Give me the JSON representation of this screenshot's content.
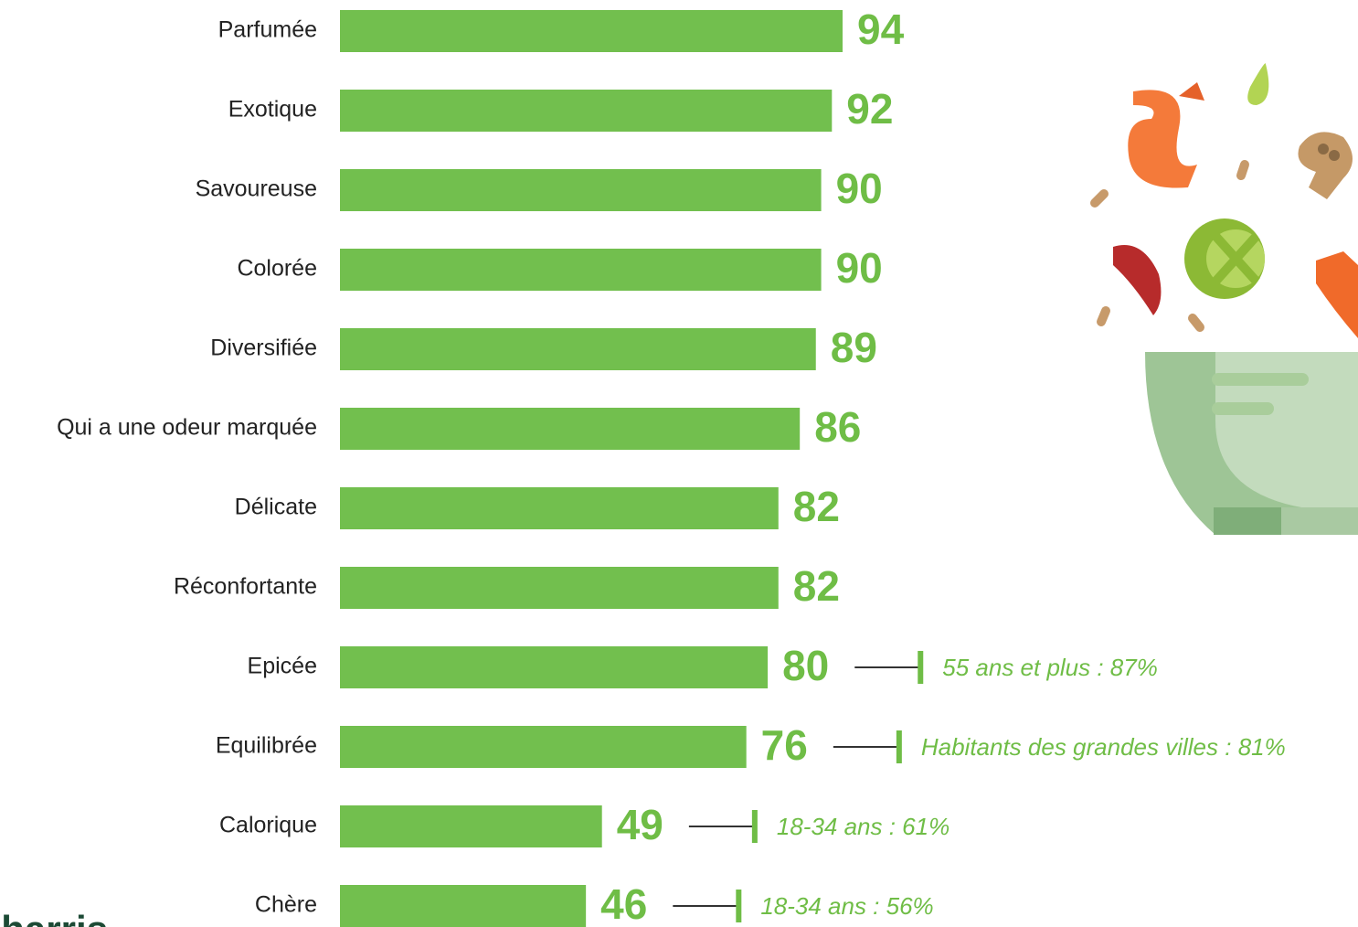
{
  "chart_data": {
    "type": "bar",
    "orientation": "horizontal",
    "categories": [
      "Parfumée",
      "Exotique",
      "Savoureuse",
      "Colorée",
      "Diversifiée",
      "Qui a une odeur marquée",
      "Délicate",
      "Réconfortante",
      "Epicée",
      "Equilibrée",
      "Calorique",
      "Chère"
    ],
    "values": [
      94,
      92,
      90,
      90,
      89,
      86,
      82,
      82,
      80,
      76,
      49,
      46
    ],
    "color": "#72bf4e",
    "annotations": [
      null,
      null,
      null,
      null,
      null,
      null,
      null,
      null,
      "55 ans et plus : 87%",
      "Habitants des grandes villes : 81%",
      "18-34 ans : 61%",
      "18-34 ans : 56%"
    ],
    "logo": "harris"
  }
}
